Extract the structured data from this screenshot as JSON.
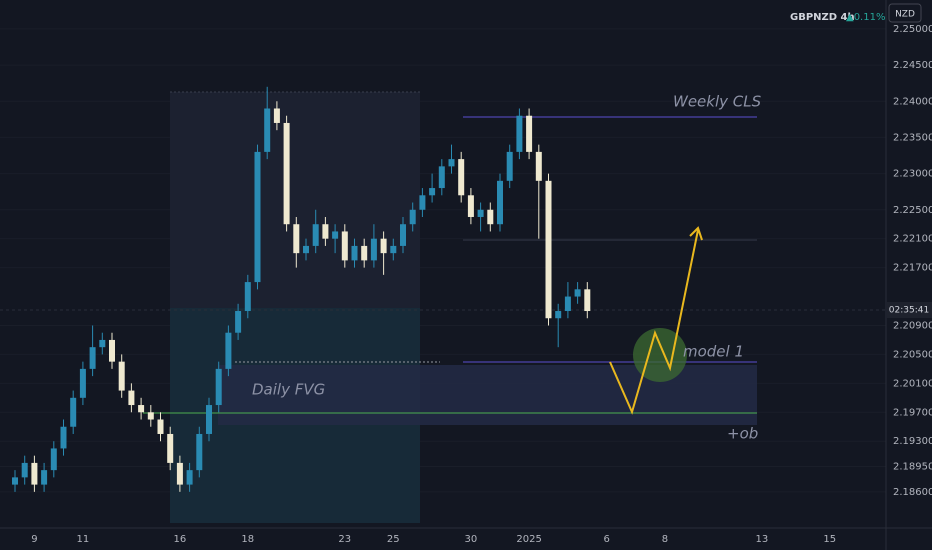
{
  "chart_data": {
    "type": "candlestick",
    "title": "GBPNZD 4h",
    "change": "▲0.11%",
    "currency": "NZD",
    "countdown": "02:35:41",
    "annotations": {
      "weekly": "Weekly CLS",
      "fvg": "Daily FVG",
      "model": "model 1",
      "ob": "+ob"
    },
    "categories": [
      null,
      null,
      "9",
      null,
      null,
      null,
      null,
      "11",
      null,
      null,
      null,
      null,
      null,
      null,
      null,
      null,
      null,
      "16",
      null,
      null,
      null,
      null,
      null,
      null,
      "18",
      null,
      null,
      null,
      null,
      null,
      null,
      null,
      null,
      null,
      "23",
      null,
      null,
      null,
      null,
      "25",
      null,
      null,
      null,
      null,
      null,
      null,
      null,
      "30",
      null,
      null,
      null,
      null,
      null,
      "2025",
      null,
      null,
      null,
      null,
      null,
      null,
      null,
      "6",
      null,
      null,
      null,
      null,
      null,
      "8",
      null,
      null,
      null,
      null,
      null,
      null,
      null,
      null,
      null,
      "13",
      null,
      null,
      null,
      null,
      null,
      null,
      "15",
      null,
      null,
      null,
      null,
      null
    ],
    "open": [
      2.187,
      2.188,
      2.19,
      2.187,
      2.189,
      2.192,
      2.195,
      2.199,
      2.203,
      2.206,
      2.207,
      2.204,
      2.2,
      2.198,
      2.197,
      2.196,
      2.194,
      2.19,
      2.187,
      2.189,
      2.194,
      2.198,
      2.203,
      2.208,
      2.211,
      2.215,
      2.233,
      2.239,
      2.237,
      2.223,
      2.219,
      2.22,
      2.223,
      2.221,
      2.222,
      2.218,
      2.22,
      2.218,
      2.221,
      2.219,
      2.22,
      2.223,
      2.225,
      2.227,
      2.228,
      2.231,
      2.232,
      2.227,
      2.224,
      2.225,
      2.223,
      2.229,
      2.233,
      2.238,
      2.233,
      2.229,
      2.21,
      2.211,
      2.213,
      2.214,
      null,
      null,
      null,
      null,
      null,
      null,
      null,
      null,
      null,
      null,
      null,
      null,
      null,
      null,
      null,
      null,
      null,
      null,
      null,
      null,
      null,
      null,
      null,
      null,
      null,
      null,
      null,
      null,
      null,
      null
    ],
    "high": [
      2.189,
      2.191,
      2.191,
      2.19,
      2.193,
      2.196,
      2.2,
      2.204,
      2.209,
      2.208,
      2.208,
      2.205,
      2.201,
      2.199,
      2.198,
      2.197,
      2.195,
      2.191,
      2.19,
      2.195,
      2.199,
      2.204,
      2.209,
      2.212,
      2.216,
      2.234,
      2.242,
      2.24,
      2.238,
      2.224,
      2.221,
      2.225,
      2.224,
      2.223,
      2.223,
      2.221,
      2.221,
      2.223,
      2.222,
      2.221,
      2.224,
      2.226,
      2.228,
      2.23,
      2.232,
      2.234,
      2.233,
      2.228,
      2.226,
      2.226,
      2.23,
      2.234,
      2.239,
      2.239,
      2.234,
      2.23,
      2.212,
      2.215,
      2.215,
      2.215,
      null,
      null,
      null,
      null,
      null,
      null,
      null,
      null,
      null,
      null,
      null,
      null,
      null,
      null,
      null,
      null,
      null,
      null,
      null,
      null,
      null,
      null,
      null,
      null,
      null,
      null,
      null,
      null,
      null,
      null
    ],
    "low": [
      2.186,
      2.187,
      2.186,
      2.186,
      2.188,
      2.191,
      2.194,
      2.198,
      2.202,
      2.205,
      2.203,
      2.199,
      2.197,
      2.196,
      2.195,
      2.193,
      2.189,
      2.186,
      2.186,
      2.188,
      2.193,
      2.197,
      2.202,
      2.207,
      2.21,
      2.214,
      2.232,
      2.236,
      2.222,
      2.217,
      2.218,
      2.219,
      2.22,
      2.219,
      2.217,
      2.217,
      2.217,
      2.217,
      2.216,
      2.218,
      2.219,
      2.222,
      2.224,
      2.226,
      2.227,
      2.23,
      2.226,
      2.223,
      2.222,
      2.222,
      2.222,
      2.228,
      2.232,
      2.232,
      2.221,
      2.209,
      2.206,
      2.21,
      2.212,
      2.21,
      null,
      null,
      null,
      null,
      null,
      null,
      null,
      null,
      null,
      null,
      null,
      null,
      null,
      null,
      null,
      null,
      null,
      null,
      null,
      null,
      null,
      null,
      null,
      null,
      null,
      null,
      null,
      null,
      null,
      null
    ],
    "close": [
      2.188,
      2.19,
      2.187,
      2.189,
      2.192,
      2.195,
      2.199,
      2.203,
      2.206,
      2.207,
      2.204,
      2.2,
      2.198,
      2.197,
      2.196,
      2.194,
      2.19,
      2.187,
      2.189,
      2.194,
      2.198,
      2.203,
      2.208,
      2.211,
      2.215,
      2.233,
      2.239,
      2.237,
      2.223,
      2.219,
      2.22,
      2.223,
      2.221,
      2.222,
      2.218,
      2.22,
      2.218,
      2.221,
      2.219,
      2.22,
      2.223,
      2.225,
      2.227,
      2.228,
      2.231,
      2.232,
      2.227,
      2.224,
      2.225,
      2.223,
      2.229,
      2.233,
      2.238,
      2.233,
      2.229,
      2.21,
      2.211,
      2.213,
      2.214,
      2.211,
      null,
      null,
      null,
      null,
      null,
      null,
      null,
      null,
      null,
      null,
      null,
      null,
      null,
      null,
      null,
      null,
      null,
      null,
      null,
      null,
      null,
      null,
      null,
      null,
      null,
      null,
      null,
      null,
      null,
      null
    ],
    "up_color": "#2a8bb3",
    "down_color": "#efe9d0",
    "ylim": [
      2.181,
      2.254
    ],
    "yticks": [
      {
        "value": 2.25,
        "label": "2.25000"
      },
      {
        "value": 2.245,
        "label": "2.24500"
      },
      {
        "value": 2.24,
        "label": "2.24000"
      },
      {
        "value": 2.235,
        "label": "2.23500"
      },
      {
        "value": 2.23,
        "label": "2.23000"
      },
      {
        "value": 2.225,
        "label": "2.22500"
      },
      {
        "value": 2.221,
        "label": "2.22100"
      },
      {
        "value": 2.217,
        "label": "2.21700"
      },
      {
        "value": 2.209,
        "label": "2.20900"
      },
      {
        "value": 2.205,
        "label": "2.20500"
      },
      {
        "value": 2.201,
        "label": "2.20100"
      },
      {
        "value": 2.197,
        "label": "2.19700"
      },
      {
        "value": 2.193,
        "label": "2.19300"
      },
      {
        "value": 2.1895,
        "label": "2.18950"
      },
      {
        "value": 2.186,
        "label": "2.18600"
      }
    ],
    "grid": true
  }
}
